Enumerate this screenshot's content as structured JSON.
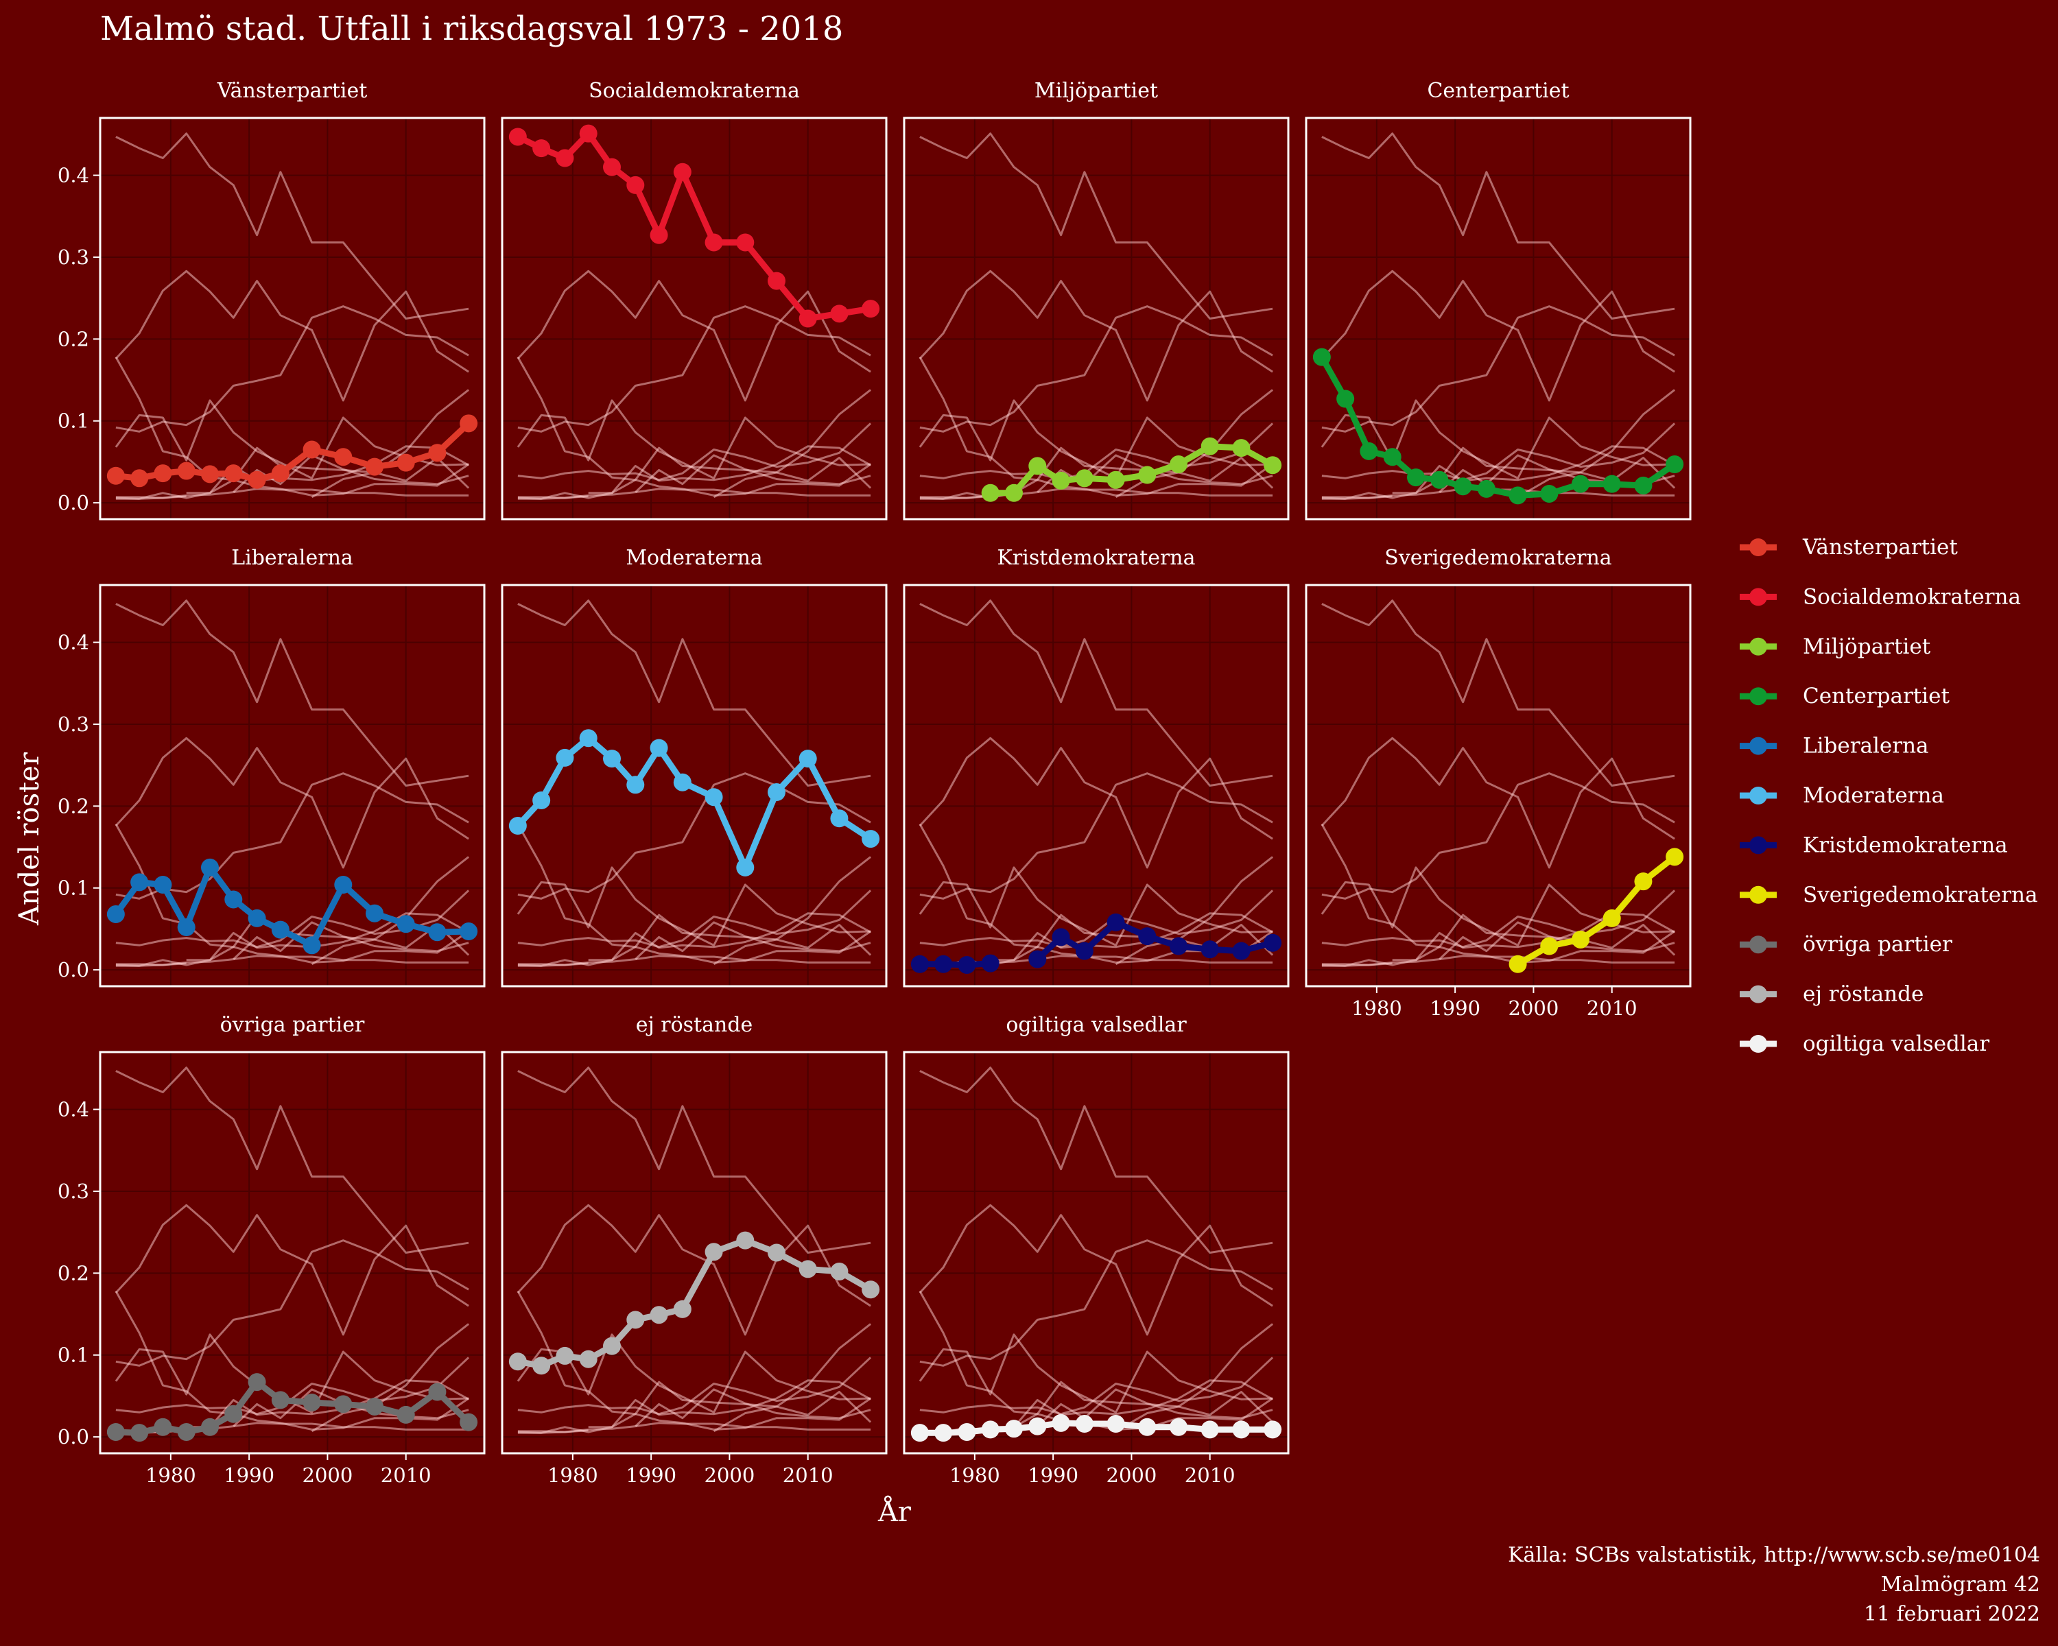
{
  "chart_data": {
    "type": "line",
    "title": "Malmö stad. Utfall i riksdagsval 1973 - 2018",
    "xlabel": "År",
    "ylabel": "Andel röster",
    "xlim": [
      1971,
      2020
    ],
    "ylim": [
      -0.02,
      0.47
    ],
    "x_ticks": [
      1980,
      1990,
      2000,
      2010
    ],
    "x_tick_labels": [
      "1980",
      "1990",
      "2000",
      "2010"
    ],
    "y_ticks": [
      0.0,
      0.1,
      0.2,
      0.3,
      0.4
    ],
    "y_tick_labels": [
      "0.0",
      "0.1",
      "0.2",
      "0.3",
      "0.4"
    ],
    "grid": true,
    "legend_position": "right",
    "facet_layout": "4 columns, 3 rows",
    "years": [
      1973,
      1976,
      1979,
      1982,
      1985,
      1988,
      1991,
      1994,
      1998,
      2002,
      2006,
      2010,
      2014,
      2018
    ],
    "series": [
      {
        "name": "Vänsterpartiet",
        "color": "#e03a2a",
        "values": [
          0.033,
          0.03,
          0.036,
          0.039,
          0.035,
          0.036,
          0.028,
          0.036,
          0.065,
          0.056,
          0.044,
          0.049,
          0.061,
          0.097
        ]
      },
      {
        "name": "Socialdemokraterna",
        "color": "#e8172d",
        "values": [
          0.447,
          0.433,
          0.421,
          0.451,
          0.41,
          0.388,
          0.327,
          0.404,
          0.318,
          0.318,
          0.271,
          0.225,
          0.231,
          0.237
        ]
      },
      {
        "name": "Miljöpartiet",
        "color": "#8ccf2e",
        "values": [
          null,
          null,
          null,
          0.012,
          0.012,
          0.045,
          0.027,
          0.03,
          0.028,
          0.034,
          0.047,
          0.069,
          0.067,
          0.046
        ]
      },
      {
        "name": "Centerpartiet",
        "color": "#0f9b30",
        "values": [
          0.178,
          0.127,
          0.063,
          0.056,
          0.031,
          0.028,
          0.02,
          0.017,
          0.009,
          0.011,
          0.023,
          0.023,
          0.021,
          0.047
        ]
      },
      {
        "name": "Liberalerna",
        "color": "#1670b8",
        "values": [
          0.068,
          0.107,
          0.104,
          0.052,
          0.125,
          0.086,
          0.063,
          0.049,
          0.03,
          0.104,
          0.069,
          0.056,
          0.046,
          0.047
        ]
      },
      {
        "name": "Moderaterna",
        "color": "#4fb8ea",
        "values": [
          0.176,
          0.207,
          0.259,
          0.283,
          0.258,
          0.226,
          0.271,
          0.229,
          0.211,
          0.125,
          0.217,
          0.258,
          0.185,
          0.16
        ]
      },
      {
        "name": "Kristdemokraterna",
        "color": "#0a0a78",
        "values": [
          0.007,
          0.007,
          0.006,
          0.008,
          null,
          0.013,
          0.04,
          0.023,
          0.058,
          0.041,
          0.029,
          0.025,
          0.023,
          0.033
        ]
      },
      {
        "name": "Sverigedemokraterna",
        "color": "#e6e100",
        "values": [
          null,
          null,
          null,
          null,
          null,
          null,
          null,
          null,
          0.007,
          0.029,
          0.037,
          0.063,
          0.108,
          0.138
        ]
      },
      {
        "name": "övriga partier",
        "color": "#6e6e6e",
        "values": [
          0.006,
          0.005,
          0.012,
          0.006,
          0.012,
          0.028,
          0.067,
          0.045,
          0.042,
          0.04,
          0.037,
          0.027,
          0.055,
          0.018
        ]
      },
      {
        "name": "ej röstande",
        "color": "#b3b3b3",
        "values": [
          0.092,
          0.087,
          0.099,
          0.095,
          0.111,
          0.143,
          0.149,
          0.156,
          0.226,
          0.24,
          0.225,
          0.205,
          0.202,
          0.18
        ]
      },
      {
        "name": "ogiltiga valsedlar",
        "color": "#f2f2f2",
        "values": [
          0.005,
          0.005,
          0.006,
          0.009,
          0.01,
          0.013,
          0.017,
          0.016,
          0.016,
          0.012,
          0.012,
          0.009,
          0.009,
          0.009
        ]
      }
    ],
    "caption": [
      "Källa: SCBs valstatistik, http://www.scb.se/me0104",
      "Malmögram 42",
      "11 februari 2022"
    ]
  }
}
